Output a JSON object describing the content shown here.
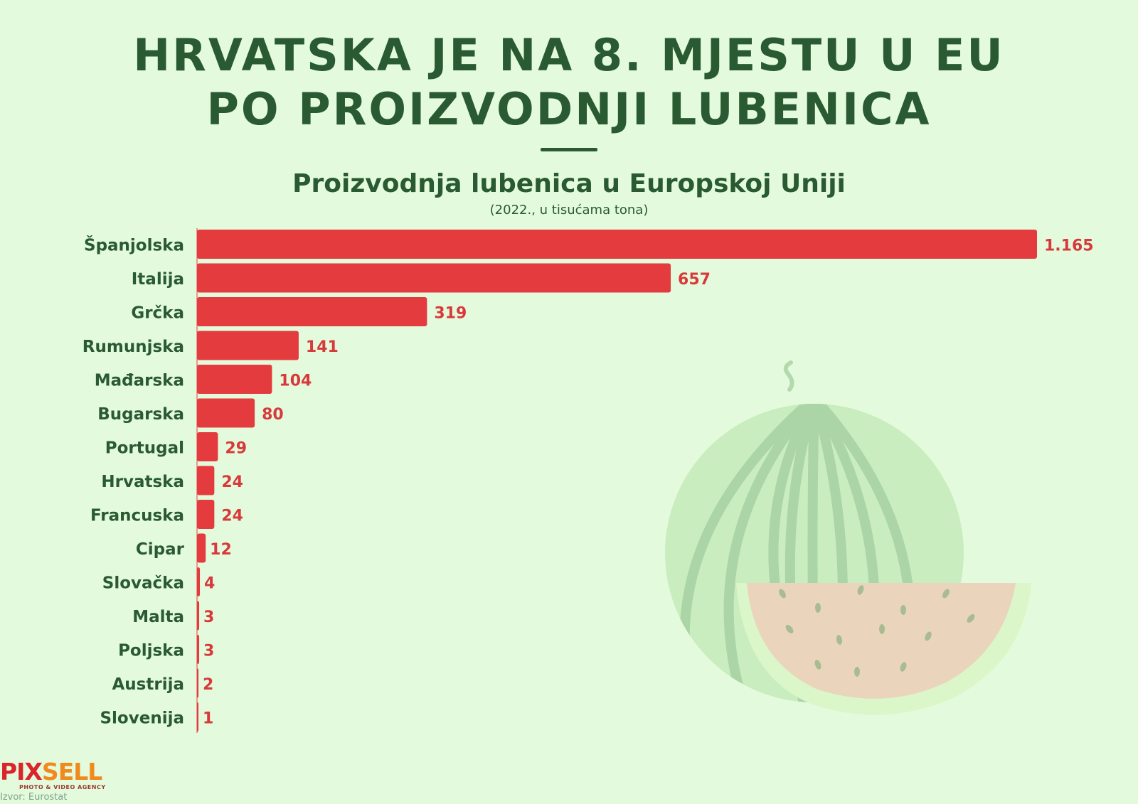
{
  "headline": {
    "line1": "HRVATSKA JE NA 8. MJESTU U EU",
    "line2": "PO PROIZVODNJI LUBENICA"
  },
  "chart_data": {
    "type": "bar",
    "orientation": "horizontal",
    "title": "Proizvodnja lubenica u Europskoj Uniji",
    "subtitle": "(2022., u tisućama tona)",
    "categories": [
      "Španjolska",
      "Italija",
      "Grčka",
      "Rumunjska",
      "Mađarska",
      "Bugarska",
      "Portugal",
      "Hrvatska",
      "Francuska",
      "Cipar",
      "Slovačka",
      "Malta",
      "Poljska",
      "Austrija",
      "Slovenija"
    ],
    "values": [
      1165,
      657,
      319,
      141,
      104,
      80,
      29,
      24,
      24,
      12,
      4,
      3,
      3,
      2,
      1
    ],
    "value_labels": [
      "1.165",
      "657",
      "319",
      "141",
      "104",
      "80",
      "29",
      "24",
      "24",
      "12",
      "4",
      "3",
      "3",
      "2",
      "1"
    ],
    "xlim": [
      0,
      1165
    ],
    "grid": false,
    "bar_color": "#e33b3e",
    "label_color": "#2a5a31",
    "value_color": "#d8393b"
  },
  "branding": {
    "logo_part1": "PIX",
    "logo_part2": "SELL",
    "tagline": "PHOTO & VIDEO AGENCY"
  },
  "source": "Izvor: Eurostat",
  "colors": {
    "background": "#e3fbdc",
    "heading": "#2a5a31",
    "bar": "#e33b3e"
  },
  "decoration": {
    "illustration_icon": "watermelon-illustration"
  }
}
